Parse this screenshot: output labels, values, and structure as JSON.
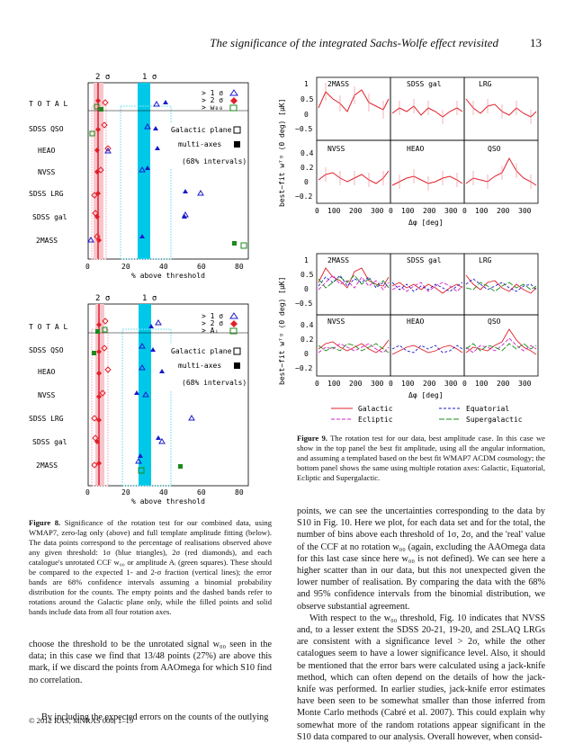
{
  "header": {
    "title": "The significance of the integrated Sachs-Wolfe effect revisited",
    "page": "13"
  },
  "fig8": {
    "top": {
      "sig_labels": [
        "2 σ",
        "1 σ"
      ],
      "datasets": [
        "T O T A L",
        "SDSS QSO",
        "HEAO",
        "NVSS",
        "SDSS LRG",
        "SDSS gal",
        "2MASS"
      ],
      "legend": [
        "> 1 σ",
        "> 2 σ",
        "> w₀₀"
      ],
      "legend2": [
        "Galactic plane",
        "multi-axes",
        "(68% intervals)"
      ],
      "xticks": [
        "0",
        "20",
        "40",
        "60",
        "80"
      ],
      "xlabel": "% above threshold"
    },
    "bottom": {
      "sig_labels": [
        "2 σ",
        "1 σ"
      ],
      "datasets": [
        "T O T A L",
        "SDSS QSO",
        "HEAO",
        "NVSS",
        "SDSS LRG",
        "SDSS gal",
        "2MASS"
      ],
      "legend": [
        "> 1 σ",
        "> 2 σ",
        "> Aᵢ"
      ],
      "legend2": [
        "Galactic plane",
        "multi-axes",
        "(68% intervals)"
      ],
      "xticks": [
        "0",
        "20",
        "40",
        "60",
        "80"
      ],
      "xlabel": "% above threshold"
    },
    "caption_label": "Figure 8.",
    "caption_text": "Significance of the rotation test for our combined data, using WMAP7, zero-lag only (above) and full template amplitude fitting (below). The data points correspond to the percentage of realisations observed above any given threshold: 1σ (blue triangles), 2σ (red diamonds), and each catalogue's unrotated CCF w₀₀ or amplitude Aᵢ (green squares). These should be compared to the expected 1- and 2-σ fraction (vertical lines); the error bands are 68% confidence intervals assuming a binomial probability distribution for the counts. The empty points and the dashed bands refer to rotations around the Galactic plane only, while the filled points and solid bands include data from all four rotation axes."
  },
  "fig9": {
    "panel_names": [
      "2MASS",
      "SDSS gal",
      "LRG",
      "NVSS",
      "HEAO",
      "QSO"
    ],
    "yticks_top": [
      "1",
      "0.5",
      "0",
      "−0.5"
    ],
    "yticks_bottom": [
      "0.4",
      "0.2",
      "0",
      "−0.2"
    ],
    "xticks": [
      "0",
      "100",
      "200",
      "300"
    ],
    "ylabel": "best−fit wᵀᵍ (0 deg) [μK]",
    "xlabel": "Δφ [deg]",
    "legend": [
      "Galactic",
      "Equatorial",
      "Ecliptic",
      "Supergalactic"
    ],
    "caption_label": "Figure 9.",
    "caption_text": "The rotation test for our data, best amplitude case. In this case we show in the top panel the best fit amplitude, using all the angular information, and assuming a templated based on the best fit WMAP7 ACDM cosmology; the bottom panel shows the same using multiple rotation axes: Galactic, Equatorial, Ecliptic and Supergalactic."
  },
  "left_text": {
    "p1": "choose the threshold to be the unrotated signal w₀₀ seen in the data; in this case we find that 13/48 points (27%) are above this mark, if we discard the points from AAOmega for which S10 find no correlation.",
    "p2": "By including the expected errors on the counts of the outlying"
  },
  "right_text": {
    "p1": "points, we can see the uncertainties corresponding to the data by S10 in Fig. 10. Here we plot, for each data set and for the total, the number of bins above each threshold of 1σ, 2σ, and the 'real' value of the CCF at no rotation w₀₀ (again, excluding the AAOmega data for this last case since here w₀₀ is not defined). We can see here a higher scatter than in our data, but this not unexpected given the lower number of realisation. By comparing the data with the 68% and 95% confidence intervals from the binomial distribution, we observe substantial agreement.",
    "p2": "With respect to the w₀₀ threshold, Fig. 10 indicates that NVSS and, to a lesser extent the SDSS 20-21, 19-20, and 2SLAQ LRGs are consistent with a significance level > 2σ, while the other catalogues seem to have a lower significance level. Also, it should be mentioned that the error bars were calculated using a jack-knife method, which can often depend on the details of how the jack-knife was performed. In earlier studies, jack-knife error estimates have been seen to be somewhat smaller than those inferred from Monte Carlo methods (Cabré et al. 2007). This could explain why somewhat more of the random rotations appear significant in the S10 data compared to our analysis. Overall however, when consid-"
  },
  "footer": "© 2012 RAS, MNRAS 000, 1–19",
  "colors": {
    "red": "#e0202a",
    "cyan": "#00c8e8",
    "blue": "#1a1acc",
    "green": "#1a8a1a",
    "pink": "#f4b6bf",
    "magenta": "#d020c8"
  }
}
